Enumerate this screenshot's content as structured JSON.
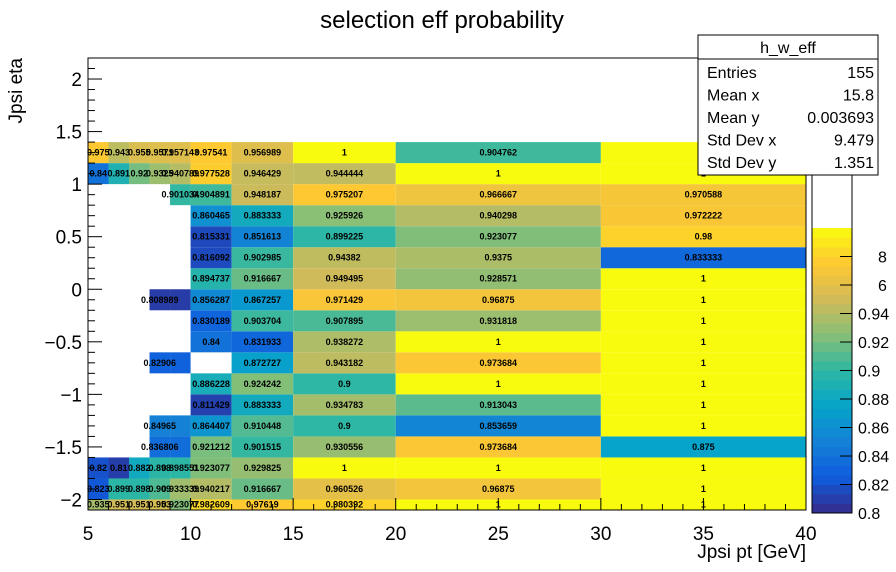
{
  "chart_data": {
    "type": "heatmap",
    "title": "selection eff probability",
    "xlabel": "Jpsi pt [GeV]",
    "ylabel": "Jpsi eta",
    "xlim": [
      5,
      40
    ],
    "ylim": [
      -2.1,
      2.2
    ],
    "x_ticks": [
      "5",
      "10",
      "15",
      "20",
      "25",
      "30",
      "35",
      "40"
    ],
    "y_ticks": [
      "−2",
      "−1.5",
      "−1",
      "−0.5",
      "0",
      "0.5",
      "1",
      "1.5",
      "2"
    ],
    "colorbar_ticks": [
      "0.8",
      "0.82",
      "0.84",
      "0.86",
      "0.88",
      "0.9",
      "0.92",
      "0.94"
    ],
    "colorbar_partial_ticks": [
      "8",
      "6"
    ],
    "zlim": [
      0.8,
      1.0
    ],
    "x_edges": [
      5,
      6,
      7,
      8,
      9,
      10,
      12,
      15,
      20,
      30,
      40
    ],
    "y_edges": [
      -2.1,
      -2.0,
      -1.8,
      -1.6,
      -1.4,
      -1.2,
      -1.0,
      -0.8,
      -0.6,
      -0.4,
      -0.2,
      0.0,
      0.2,
      0.4,
      0.6,
      0.8,
      1.0,
      1.2,
      1.4,
      1.6,
      1.8,
      1.9,
      2.0,
      2.2
    ],
    "rows": [
      [
        0.935,
        0.951,
        0.951,
        0.953,
        0.923077,
        0.982609,
        0.97619,
        0.980392,
        1,
        1
      ],
      [
        0.823,
        0.899,
        0.898,
        0.909,
        0.933339,
        0.940217,
        0.916667,
        0.960526,
        0.96875,
        1
      ],
      [
        0.82,
        0.81,
        0.882,
        0.898,
        0.898551,
        0.923077,
        0.929825,
        1,
        1,
        1
      ],
      [
        null,
        null,
        null,
        0.836806,
        0.836806,
        0.921212,
        0.901515,
        0.930556,
        0.973684,
        0.875
      ],
      [
        null,
        null,
        null,
        0.84965,
        0.84965,
        0.864407,
        0.910448,
        0.9,
        0.853659,
        1
      ],
      [
        null,
        null,
        null,
        null,
        null,
        0.811429,
        0.883333,
        0.934783,
        0.913043,
        1
      ],
      [
        null,
        null,
        null,
        null,
        null,
        0.886228,
        0.924242,
        0.9,
        1,
        1
      ],
      [
        null,
        null,
        null,
        0.82906,
        0.82906,
        null,
        0.872727,
        0.943182,
        0.973684,
        1
      ],
      [
        null,
        null,
        null,
        null,
        null,
        0.84,
        0.831933,
        0.938272,
        1,
        1
      ],
      [
        null,
        null,
        null,
        null,
        null,
        0.830189,
        0.903704,
        0.907895,
        0.931818,
        1
      ],
      [
        null,
        null,
        null,
        0.808989,
        0.808989,
        0.856287,
        0.867257,
        0.971429,
        0.96875,
        1
      ],
      [
        null,
        null,
        null,
        null,
        null,
        0.894737,
        0.916667,
        0.949495,
        0.928571,
        1
      ],
      [
        null,
        null,
        null,
        null,
        null,
        0.816092,
        0.902985,
        0.94382,
        0.9375,
        0.833333
      ],
      [
        null,
        null,
        null,
        null,
        null,
        0.815331,
        0.851613,
        0.899225,
        0.923077,
        0.98
      ],
      [
        null,
        null,
        null,
        null,
        null,
        0.860465,
        0.883333,
        0.925926,
        0.940298,
        0.972222
      ],
      [
        null,
        null,
        null,
        null,
        0.901034,
        0.904891,
        0.948187,
        0.975207,
        0.966667,
        0.970588
      ],
      [
        0.84,
        0.891,
        0.92,
        0.9325,
        0.940789,
        0.977528,
        0.946429,
        0.944444,
        1,
        1
      ],
      [
        0.975,
        0.943,
        0.955,
        0.9571,
        0.957143,
        0.97541,
        0.956989,
        1,
        0.904762,
        1
      ],
      [
        null,
        null,
        null,
        null,
        null,
        null,
        null,
        null,
        null,
        null
      ],
      [
        null,
        null,
        null,
        null,
        null,
        null,
        null,
        null,
        null,
        null
      ],
      [
        null,
        null,
        null,
        null,
        null,
        null,
        null,
        null,
        null,
        null
      ],
      [
        null,
        null,
        null,
        null,
        null,
        null,
        null,
        null,
        null,
        null
      ],
      [
        null,
        null,
        null,
        null,
        null,
        null,
        null,
        null,
        null,
        null
      ]
    ],
    "labels": [
      [
        "0.935",
        "0.951",
        "0.951",
        "0.953",
        "0.923077",
        "0.982609",
        "0.97619",
        "0.980392",
        "1",
        "1"
      ],
      [
        "0.823",
        "0.899",
        "0.898",
        "0.909",
        "0.933339",
        "0.940217",
        "0.916667",
        "0.960526",
        "0.96875",
        "1"
      ],
      [
        "0.82",
        "0.81",
        "0.882",
        "0.898",
        "0.898551",
        "0.923077",
        "0.929825",
        "1",
        "1",
        "1"
      ],
      [
        "",
        "",
        "",
        "0.836806",
        "",
        "0.921212",
        "0.901515",
        "0.930556",
        "0.973684",
        "0.875"
      ],
      [
        "",
        "",
        "",
        "0.84965",
        "",
        "0.864407",
        "0.910448",
        "0.9",
        "0.853659",
        "1"
      ],
      [
        "",
        "",
        "",
        "",
        "",
        "0.811429",
        "0.883333",
        "0.934783",
        "0.913043",
        "1"
      ],
      [
        "",
        "",
        "",
        "",
        "",
        "0.886228",
        "0.924242",
        "0.9",
        "1",
        "1"
      ],
      [
        "",
        "",
        "",
        "0.82906",
        "",
        "",
        "0.872727",
        "0.943182",
        "0.973684",
        "1"
      ],
      [
        "",
        "",
        "",
        "",
        "",
        "0.84",
        "0.831933",
        "0.938272",
        "1",
        "1"
      ],
      [
        "",
        "",
        "",
        "",
        "",
        "0.830189",
        "0.903704",
        "0.907895",
        "0.931818",
        "1"
      ],
      [
        "",
        "",
        "",
        "0.808989",
        "",
        "0.856287",
        "0.867257",
        "0.971429",
        "0.96875",
        "1"
      ],
      [
        "",
        "",
        "",
        "",
        "",
        "0.894737",
        "0.916667",
        "0.949495",
        "0.928571",
        "1"
      ],
      [
        "",
        "",
        "",
        "",
        "",
        "0.816092",
        "0.902985",
        "0.94382",
        "0.9375",
        "0.833333"
      ],
      [
        "",
        "",
        "",
        "",
        "",
        "0.815331",
        "0.851613",
        "0.899225",
        "0.923077",
        "0.98"
      ],
      [
        "",
        "",
        "",
        "",
        "",
        "0.860465",
        "0.883333",
        "0.925926",
        "0.940298",
        "0.972222"
      ],
      [
        "",
        "",
        "",
        "",
        "0.901034",
        "0.904891",
        "0.948187",
        "0.975207",
        "0.966667",
        "0.970588"
      ],
      [
        "0.84",
        "0.891",
        "0.92",
        "0.9325",
        "0.940789",
        "0.977528",
        "0.946429",
        "0.944444",
        "1",
        "1"
      ],
      [
        "0.975",
        "0.943",
        "0.955",
        "0.9571",
        "0.957143",
        "0.97541",
        "0.956989",
        "1",
        "0.904762",
        "1"
      ],
      [
        "",
        "",
        "",
        "",
        "",
        "",
        "",
        "",
        "",
        ""
      ],
      [
        "",
        "",
        "",
        "",
        "",
        "",
        "",
        "",
        "",
        ""
      ],
      [
        "",
        "",
        "",
        "",
        "",
        "",
        "",
        "",
        "",
        ""
      ],
      [
        "",
        "",
        "",
        "",
        "",
        "",
        "",
        "",
        "",
        ""
      ],
      [
        "",
        "",
        "",
        "",
        "",
        "",
        "",
        "",
        "",
        ""
      ]
    ]
  },
  "stats_box": {
    "name": "h_w_eff",
    "rows": [
      {
        "label": "Entries",
        "value": "155"
      },
      {
        "label": "Mean x",
        "value": "15.8"
      },
      {
        "label": "Mean y",
        "value": "0.003693"
      },
      {
        "label": "Std Dev x",
        "value": "9.479"
      },
      {
        "label": "Std Dev y",
        "value": "1.351"
      }
    ]
  },
  "palette": [
    "#352a87",
    "#0f5cdd",
    "#1481d6",
    "#06a4ca",
    "#2eb7a4",
    "#87bf77",
    "#d1bb59",
    "#fec832",
    "#f9fb0e"
  ]
}
